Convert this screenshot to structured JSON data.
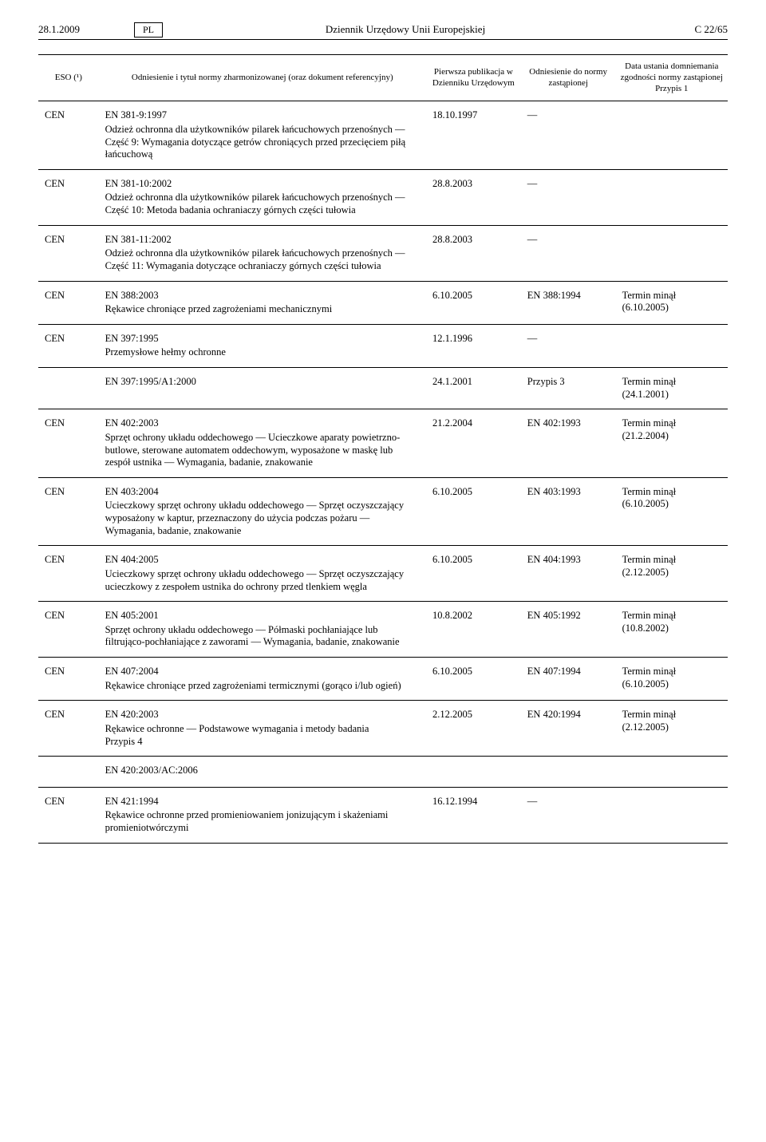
{
  "header": {
    "date": "28.1.2009",
    "lang": "PL",
    "title": "Dziennik Urzędowy Unii Europejskiej",
    "page": "C 22/65"
  },
  "columns": {
    "eso": "ESO (¹)",
    "ref": "Odniesienie i tytuł normy zharmonizowanej\n(oraz dokument referencyjny)",
    "pub": "Pierwsza publikacja w Dzienniku Urzędowym",
    "norm": "Odniesienie do normy zastąpionej",
    "date": "Data ustania domniemania zgodności normy zastąpionej\nPrzypis 1"
  },
  "rows": [
    {
      "eso": "CEN",
      "code": "EN 381-9:1997",
      "desc": "Odzież ochronna dla użytkowników pilarek łańcuchowych przenośnych — Część 9: Wymagania dotyczące getrów chroniących przed przecięciem piłą łańcuchową",
      "pub": "18.10.1997",
      "norm": "—",
      "date": ""
    },
    {
      "eso": "CEN",
      "code": "EN 381-10:2002",
      "desc": "Odzież ochronna dla użytkowników pilarek łańcuchowych przenośnych — Część 10: Metoda badania ochraniaczy górnych części tułowia",
      "pub": "28.8.2003",
      "norm": "—",
      "date": ""
    },
    {
      "eso": "CEN",
      "code": "EN 381-11:2002",
      "desc": "Odzież ochronna dla użytkowników pilarek łańcuchowych przenośnych — Część 11: Wymagania dotyczące ochraniaczy górnych części tułowia",
      "pub": "28.8.2003",
      "norm": "—",
      "date": ""
    },
    {
      "eso": "CEN",
      "code": "EN 388:2003",
      "desc": "Rękawice chroniące przed zagrożeniami mechanicznymi",
      "pub": "6.10.2005",
      "norm": "EN 388:1994",
      "date": "Termin minął\n(6.10.2005)"
    },
    {
      "eso": "CEN",
      "code": "EN 397:1995",
      "desc": "Przemysłowe hełmy ochronne",
      "pub": "12.1.1996",
      "norm": "—",
      "date": "",
      "sub": {
        "code": "EN 397:1995/A1:2000",
        "pub": "24.1.2001",
        "norm": "Przypis 3",
        "date": "Termin minął\n(24.1.2001)"
      }
    },
    {
      "eso": "CEN",
      "code": "EN 402:2003",
      "desc": "Sprzęt ochrony układu oddechowego — Ucieczkowe aparaty powietrzno-butlowe, sterowane automatem oddechowym, wyposażone w maskę lub zespół ustnika — Wymagania, badanie, znakowanie",
      "pub": "21.2.2004",
      "norm": "EN 402:1993",
      "date": "Termin minął\n(21.2.2004)"
    },
    {
      "eso": "CEN",
      "code": "EN 403:2004",
      "desc": "Ucieczkowy sprzęt ochrony układu oddechowego — Sprzęt oczyszczający wyposażony w kaptur, przeznaczony do użycia podczas pożaru — Wymagania, badanie, znakowanie",
      "pub": "6.10.2005",
      "norm": "EN 403:1993",
      "date": "Termin minął\n(6.10.2005)"
    },
    {
      "eso": "CEN",
      "code": "EN 404:2005",
      "desc": "Ucieczkowy sprzęt ochrony układu oddechowego — Sprzęt oczyszczający ucieczkowy z zespołem ustnika do ochrony przed tlenkiem węgla",
      "pub": "6.10.2005",
      "norm": "EN 404:1993",
      "date": "Termin minął\n(2.12.2005)"
    },
    {
      "eso": "CEN",
      "code": "EN 405:2001",
      "desc": "Sprzęt ochrony układu oddechowego — Półmaski pochłaniające lub filtrująco-pochłaniające z zaworami — Wymagania, badanie, znakowanie",
      "pub": "10.8.2002",
      "norm": "EN 405:1992",
      "date": "Termin minął\n(10.8.2002)"
    },
    {
      "eso": "CEN",
      "code": "EN 407:2004",
      "desc": "Rękawice chroniące przed zagrożeniami termicznymi (gorąco i/lub ogień)",
      "pub": "6.10.2005",
      "norm": "EN 407:1994",
      "date": "Termin minął\n(6.10.2005)"
    },
    {
      "eso": "CEN",
      "code": "EN 420:2003",
      "desc": "Rękawice ochronne — Podstawowe wymagania i metody badania\nPrzypis 4",
      "pub": "2.12.2005",
      "norm": "EN 420:1994",
      "date": "Termin minął\n(2.12.2005)",
      "sub": {
        "code": "EN 420:2003/AC:2006",
        "pub": "",
        "norm": "",
        "date": ""
      }
    },
    {
      "eso": "CEN",
      "code": "EN 421:1994",
      "desc": "Rękawice ochronne przed promieniowaniem jonizującym i skażeniami promieniotwórczymi",
      "pub": "16.12.1994",
      "norm": "—",
      "date": ""
    }
  ]
}
